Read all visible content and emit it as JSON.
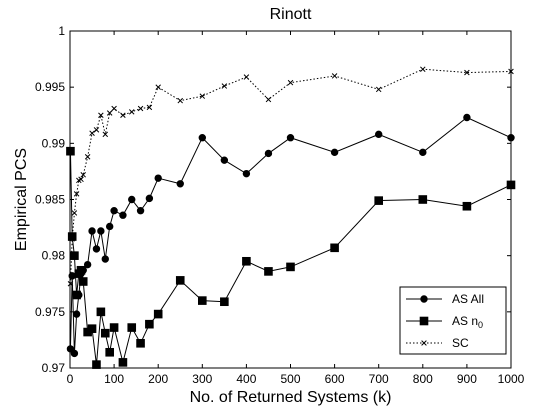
{
  "chart_data": {
    "type": "line",
    "title": "Rinott",
    "xlabel": "No. of Returned Systems (k)",
    "ylabel": "Empirical PCS",
    "xlim": [
      0,
      1000
    ],
    "ylim": [
      0.97,
      1
    ],
    "xticks": [
      0,
      100,
      200,
      300,
      400,
      500,
      600,
      700,
      800,
      900,
      1000
    ],
    "xtick_labels": [
      "0",
      "100",
      "200",
      "300",
      "400",
      "500",
      "600",
      "700",
      "800",
      "900",
      "1000"
    ],
    "yticks": [
      0.97,
      0.975,
      0.98,
      0.985,
      0.99,
      0.995,
      1
    ],
    "ytick_labels": [
      "0.97",
      "0.975",
      "0.98",
      "0.985",
      "0.99",
      "0.995",
      "1"
    ],
    "grid": false,
    "legend_position": "bottom-right",
    "series": [
      {
        "name": "AS All",
        "marker": "circle",
        "line": "solid",
        "color": "#000000",
        "x": [
          1,
          5,
          10,
          15,
          20,
          25,
          30,
          40,
          50,
          60,
          70,
          80,
          90,
          100,
          120,
          140,
          160,
          180,
          200,
          250,
          300,
          350,
          400,
          450,
          500,
          600,
          700,
          800,
          900,
          1000
        ],
        "y": [
          0.9717,
          0.9782,
          0.9713,
          0.9748,
          0.9765,
          0.9784,
          0.9787,
          0.9792,
          0.9822,
          0.9806,
          0.9822,
          0.9797,
          0.9826,
          0.984,
          0.9836,
          0.985,
          0.984,
          0.9851,
          0.9869,
          0.9864,
          0.9905,
          0.9885,
          0.9873,
          0.9891,
          0.9905,
          0.9892,
          0.9908,
          0.9892,
          0.9923,
          0.9905
        ]
      },
      {
        "name": "AS n_0",
        "marker": "square",
        "line": "solid",
        "color": "#000000",
        "x": [
          1,
          5,
          10,
          15,
          20,
          25,
          30,
          40,
          50,
          60,
          70,
          80,
          90,
          100,
          120,
          140,
          160,
          180,
          200,
          250,
          300,
          350,
          400,
          450,
          500,
          600,
          700,
          800,
          900,
          1000
        ],
        "y": [
          0.9893,
          0.9817,
          0.98,
          0.9765,
          0.9784,
          0.9787,
          0.9777,
          0.9732,
          0.9735,
          0.9703,
          0.975,
          0.9731,
          0.9714,
          0.9736,
          0.9705,
          0.9736,
          0.9722,
          0.9739,
          0.9748,
          0.9778,
          0.976,
          0.9759,
          0.9795,
          0.9786,
          0.979,
          0.9807,
          0.9849,
          0.985,
          0.9844,
          0.9863
        ]
      },
      {
        "name": "SC",
        "marker": "x",
        "line": "dotted",
        "color": "#000000",
        "x": [
          1,
          5,
          10,
          15,
          20,
          25,
          30,
          40,
          50,
          60,
          70,
          80,
          90,
          100,
          120,
          140,
          160,
          180,
          200,
          250,
          300,
          350,
          400,
          450,
          500,
          600,
          700,
          800,
          900,
          1000
        ],
        "y": [
          0.9775,
          0.9815,
          0.9838,
          0.9855,
          0.9867,
          0.9868,
          0.9872,
          0.9888,
          0.9909,
          0.9912,
          0.9925,
          0.9908,
          0.9927,
          0.9931,
          0.9925,
          0.9928,
          0.9931,
          0.9932,
          0.995,
          0.9938,
          0.9942,
          0.9951,
          0.9959,
          0.9939,
          0.9954,
          0.996,
          0.9948,
          0.9966,
          0.9963,
          0.9964
        ]
      }
    ]
  }
}
